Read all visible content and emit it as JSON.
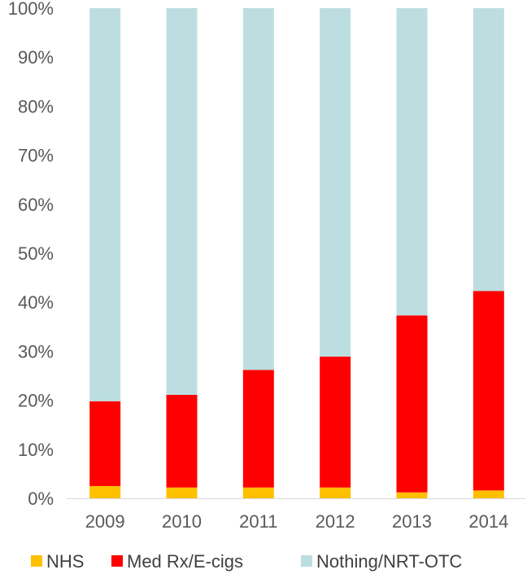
{
  "chart_data": {
    "type": "bar",
    "stacked": true,
    "percent_stacked": true,
    "categories": [
      "2009",
      "2010",
      "2011",
      "2012",
      "2013",
      "2014"
    ],
    "series": [
      {
        "name": "NHS",
        "color": "#FFC000",
        "values": [
          2.5,
          2.2,
          2.2,
          2.2,
          1.2,
          1.6
        ]
      },
      {
        "name": "Med Rx/E-cigs",
        "color": "#FF0000",
        "values": [
          17.3,
          18.9,
          24.0,
          26.7,
          36.1,
          40.7
        ]
      },
      {
        "name": "Nothing/NRT-OTC",
        "color": "#BDDEE1",
        "values": [
          80.2,
          78.9,
          73.8,
          71.1,
          62.7,
          57.7
        ]
      }
    ],
    "y_ticks": [
      "0%",
      "10%",
      "20%",
      "30%",
      "40%",
      "50%",
      "60%",
      "70%",
      "80%",
      "90%",
      "100%"
    ],
    "ylim": [
      0,
      100
    ],
    "grid": false,
    "legend_position": "bottom"
  }
}
